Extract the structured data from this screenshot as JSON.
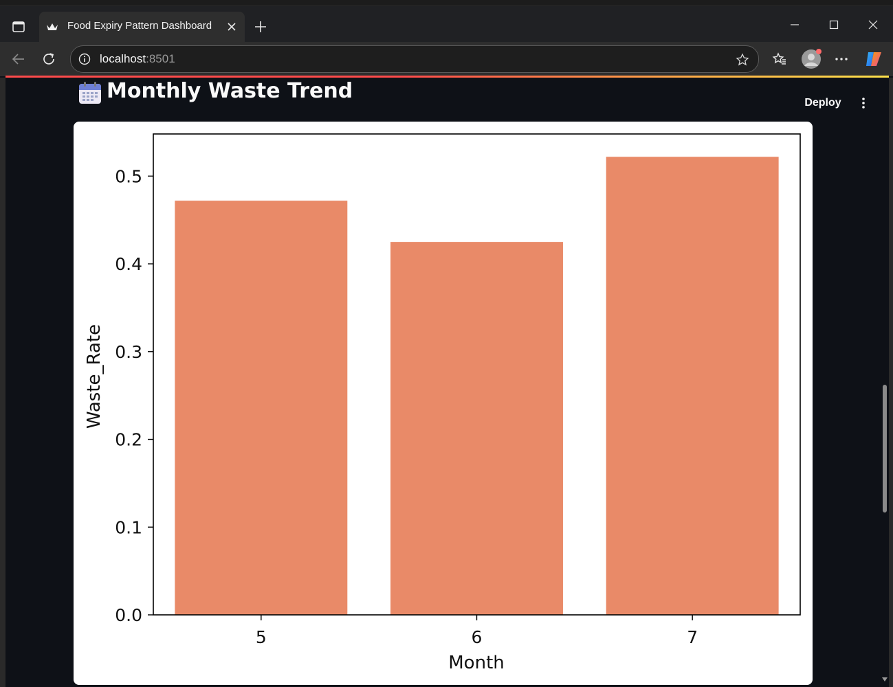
{
  "browser": {
    "tab_title": "Food Expiry Pattern Dashboard",
    "url_host": "localhost",
    "url_port": ":8501"
  },
  "app": {
    "title": "Monthly Waste Trend",
    "deploy_label": "Deploy"
  },
  "icons": {
    "title_icon": "calendar-icon",
    "tab_favicon": "crown-icon"
  },
  "colors": {
    "bar": "#e98a68",
    "page_bg": "#0e1117",
    "progress_start": "#ff4b4b",
    "progress_end": "#fde14b"
  },
  "chart_data": {
    "type": "bar",
    "categories": [
      "5",
      "6",
      "7"
    ],
    "values": [
      0.472,
      0.425,
      0.522
    ],
    "xlabel": "Month",
    "ylabel": "Waste_Rate",
    "yticks": [
      "0.0",
      "0.1",
      "0.2",
      "0.3",
      "0.4",
      "0.5"
    ],
    "ylim": [
      0,
      0.548
    ],
    "grid": false
  }
}
